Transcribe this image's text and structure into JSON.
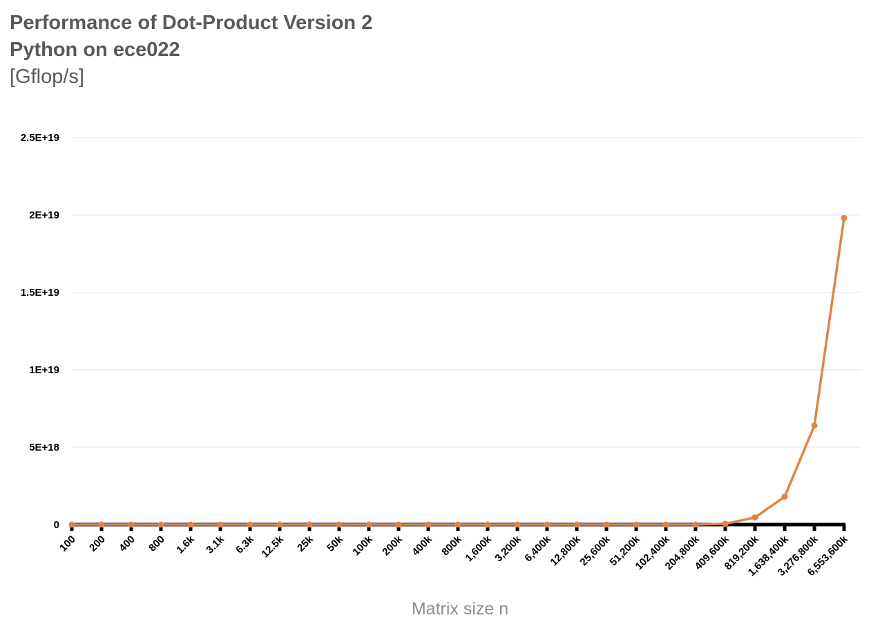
{
  "chart_data": {
    "type": "line",
    "title": "Performance of Dot-Product Version 2",
    "title_line2": "Python on ece022",
    "subtitle": "[Gflop/s]",
    "xlabel": "Matrix size n",
    "ylabel": "",
    "ylim": [
      0,
      2.5e+19
    ],
    "yticks": [
      0,
      5e+18,
      1e+19,
      1.5e+19,
      2e+19,
      2.5e+19
    ],
    "ytick_labels": [
      "0",
      "5E+18",
      "1E+19",
      "1.5E+19",
      "2E+19",
      "2.5E+19"
    ],
    "grid": true,
    "legend": "none",
    "categories": [
      "100",
      "200",
      "400",
      "800",
      "1.6k",
      "3.1k",
      "6.3k",
      "12.5k",
      "25k",
      "50k",
      "100k",
      "200k",
      "400k",
      "800k",
      "1,600k",
      "3,200k",
      "6,400k",
      "12,800k",
      "25,600k",
      "51,200k",
      "102,400k",
      "204,800k",
      "409,600k",
      "819,200k",
      "1,638,400k",
      "3,276,800k",
      "6,553,600k"
    ],
    "series": [
      {
        "color": "#e0834a",
        "values": [
          0,
          0,
          0,
          0,
          0,
          0,
          0,
          0,
          0,
          0,
          0,
          0,
          0,
          0,
          0,
          0,
          0,
          0,
          0,
          0,
          0,
          0,
          5e+16,
          4.6e+17,
          1.8e+18,
          6.4e+18,
          1.98e+19
        ]
      }
    ]
  }
}
